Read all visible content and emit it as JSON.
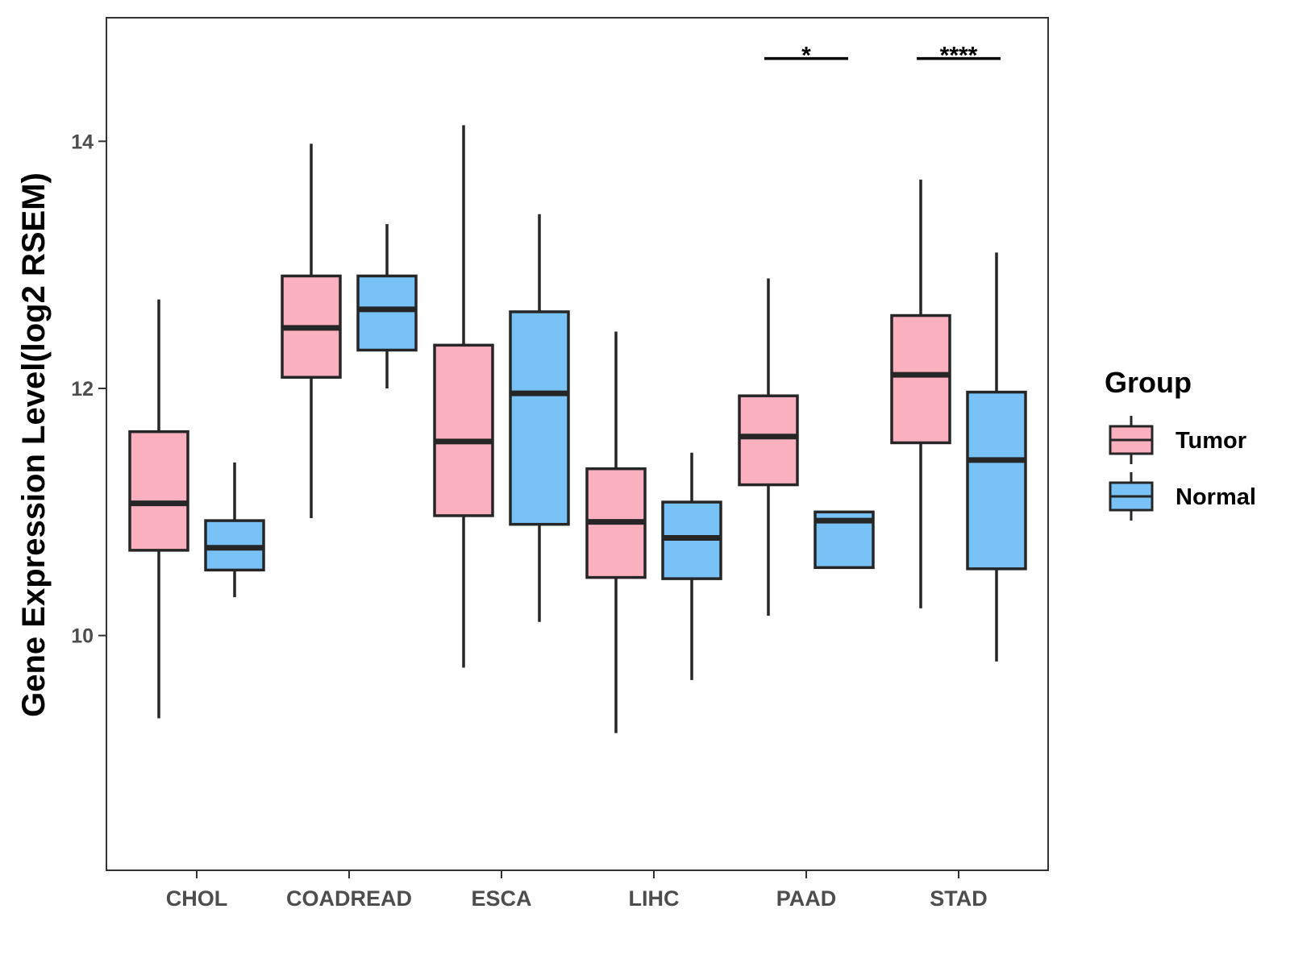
{
  "chart_data": {
    "type": "boxplot",
    "title": "",
    "xlabel": "",
    "ylabel": "Gene Expression Level(log2 RSEM)",
    "ylim": [
      8.1,
      15.0
    ],
    "yticks": [
      10,
      12,
      14
    ],
    "categories": [
      "CHOL",
      "COADREAD",
      "ESCA",
      "LIHC",
      "PAAD",
      "STAD"
    ],
    "legend": {
      "title": "Group",
      "position": "right",
      "entries": [
        {
          "name": "Tumor",
          "color": "#fbb0c0"
        },
        {
          "name": "Normal",
          "color": "#79c2f8"
        }
      ]
    },
    "series": [
      {
        "name": "Tumor",
        "color": "#fbb0c0",
        "boxes": [
          {
            "category": "CHOL",
            "min": 9.33,
            "q1": 10.69,
            "median": 11.07,
            "q3": 11.65,
            "max": 12.72
          },
          {
            "category": "COADREAD",
            "min": 10.95,
            "q1": 12.09,
            "median": 12.49,
            "q3": 12.91,
            "max": 13.98
          },
          {
            "category": "ESCA",
            "min": 9.74,
            "q1": 10.97,
            "median": 11.57,
            "q3": 12.35,
            "max": 14.13
          },
          {
            "category": "LIHC",
            "min": 9.21,
            "q1": 10.47,
            "median": 10.92,
            "q3": 11.35,
            "max": 12.46
          },
          {
            "category": "PAAD",
            "min": 10.16,
            "q1": 11.22,
            "median": 11.61,
            "q3": 11.94,
            "max": 12.89
          },
          {
            "category": "STAD",
            "min": 10.22,
            "q1": 11.56,
            "median": 12.11,
            "q3": 12.59,
            "max": 13.69
          }
        ]
      },
      {
        "name": "Normal",
        "color": "#79c2f8",
        "boxes": [
          {
            "category": "CHOL",
            "min": 10.31,
            "q1": 10.53,
            "median": 10.71,
            "q3": 10.93,
            "max": 11.4
          },
          {
            "category": "COADREAD",
            "min": 12.0,
            "q1": 12.31,
            "median": 12.64,
            "q3": 12.91,
            "max": 13.33
          },
          {
            "category": "ESCA",
            "min": 10.11,
            "q1": 10.9,
            "median": 11.96,
            "q3": 12.62,
            "max": 13.41
          },
          {
            "category": "LIHC",
            "min": 9.64,
            "q1": 10.46,
            "median": 10.79,
            "q3": 11.08,
            "max": 11.48
          },
          {
            "category": "PAAD",
            "min": 10.55,
            "q1": 10.55,
            "median": 10.93,
            "q3": 11.0,
            "max": 11.0
          },
          {
            "category": "STAD",
            "min": 9.79,
            "q1": 10.54,
            "median": 11.42,
            "q3": 11.97,
            "max": 13.1
          }
        ]
      }
    ],
    "annotations": [
      {
        "category": "PAAD",
        "label": "*",
        "y": 14.67
      },
      {
        "category": "STAD",
        "label": "****",
        "y": 14.67
      }
    ]
  }
}
